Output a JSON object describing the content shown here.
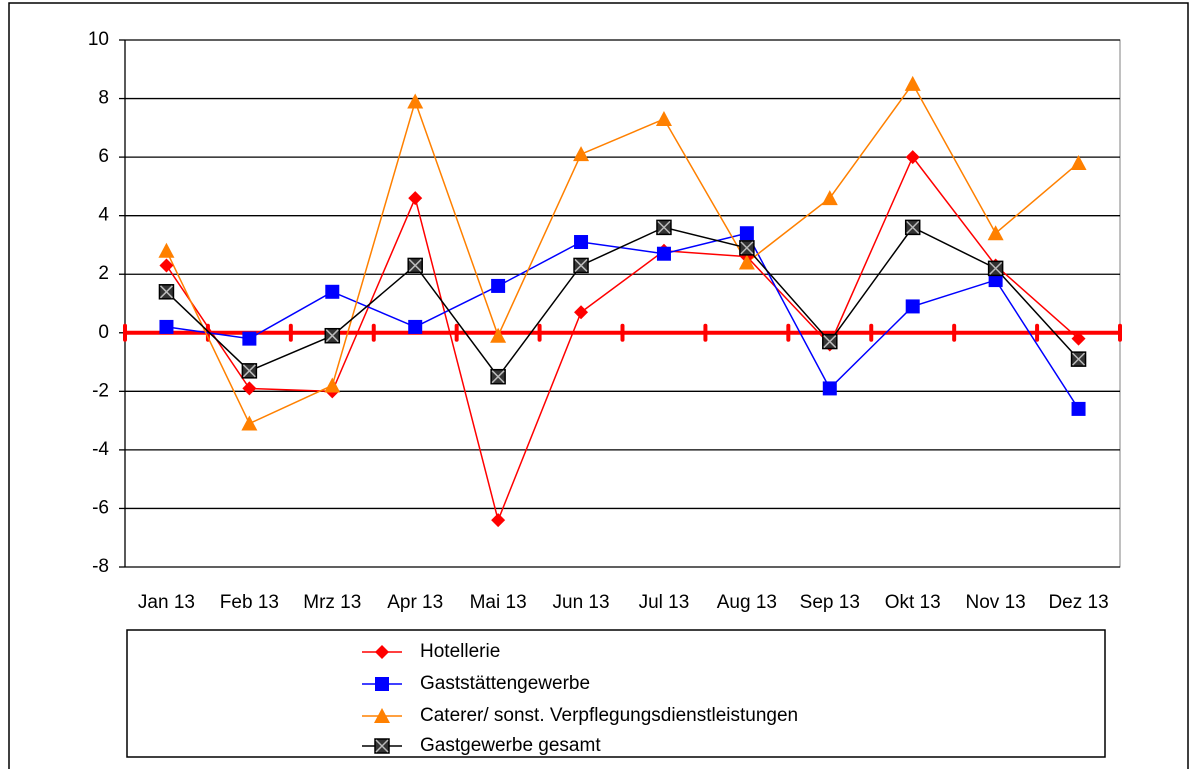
{
  "chart_data": {
    "type": "line",
    "categories": [
      "Jan 13",
      "Feb 13",
      "Mrz 13",
      "Apr 13",
      "Mai 13",
      "Jun 13",
      "Jul 13",
      "Aug 13",
      "Sep 13",
      "Okt 13",
      "Nov 13",
      "Dez 13"
    ],
    "series": [
      {
        "name": "Hotellerie",
        "color": "#ff0000",
        "marker": "diamond",
        "values": [
          2.3,
          -1.9,
          -2.0,
          4.6,
          -6.4,
          0.7,
          2.8,
          2.6,
          -0.4,
          6.0,
          2.3,
          -0.2
        ]
      },
      {
        "name": "Gaststättengewerbe",
        "color": "#0000ff",
        "marker": "square",
        "values": [
          0.2,
          -0.2,
          1.4,
          0.2,
          1.6,
          3.1,
          2.7,
          3.4,
          -1.9,
          0.9,
          1.8,
          -2.6
        ]
      },
      {
        "name": "Caterer/ sonst. Verpflegungsdienstleistungen",
        "color": "#ff8000",
        "marker": "triangle",
        "values": [
          2.8,
          -3.1,
          -1.8,
          7.9,
          -0.1,
          6.1,
          7.3,
          2.4,
          4.6,
          8.5,
          3.4,
          5.8
        ]
      },
      {
        "name": "Gastgewerbe gesamt",
        "color": "#000000",
        "marker": "xsquare",
        "values": [
          1.4,
          -1.3,
          -0.1,
          2.3,
          -1.5,
          2.3,
          3.6,
          2.9,
          -0.3,
          3.6,
          2.2,
          -0.9
        ]
      }
    ],
    "ylim": [
      -8,
      10
    ],
    "yticks": [
      -8,
      -6,
      -4,
      -2,
      0,
      2,
      4,
      6,
      8,
      10
    ],
    "grid": true,
    "legend": "bottom"
  }
}
